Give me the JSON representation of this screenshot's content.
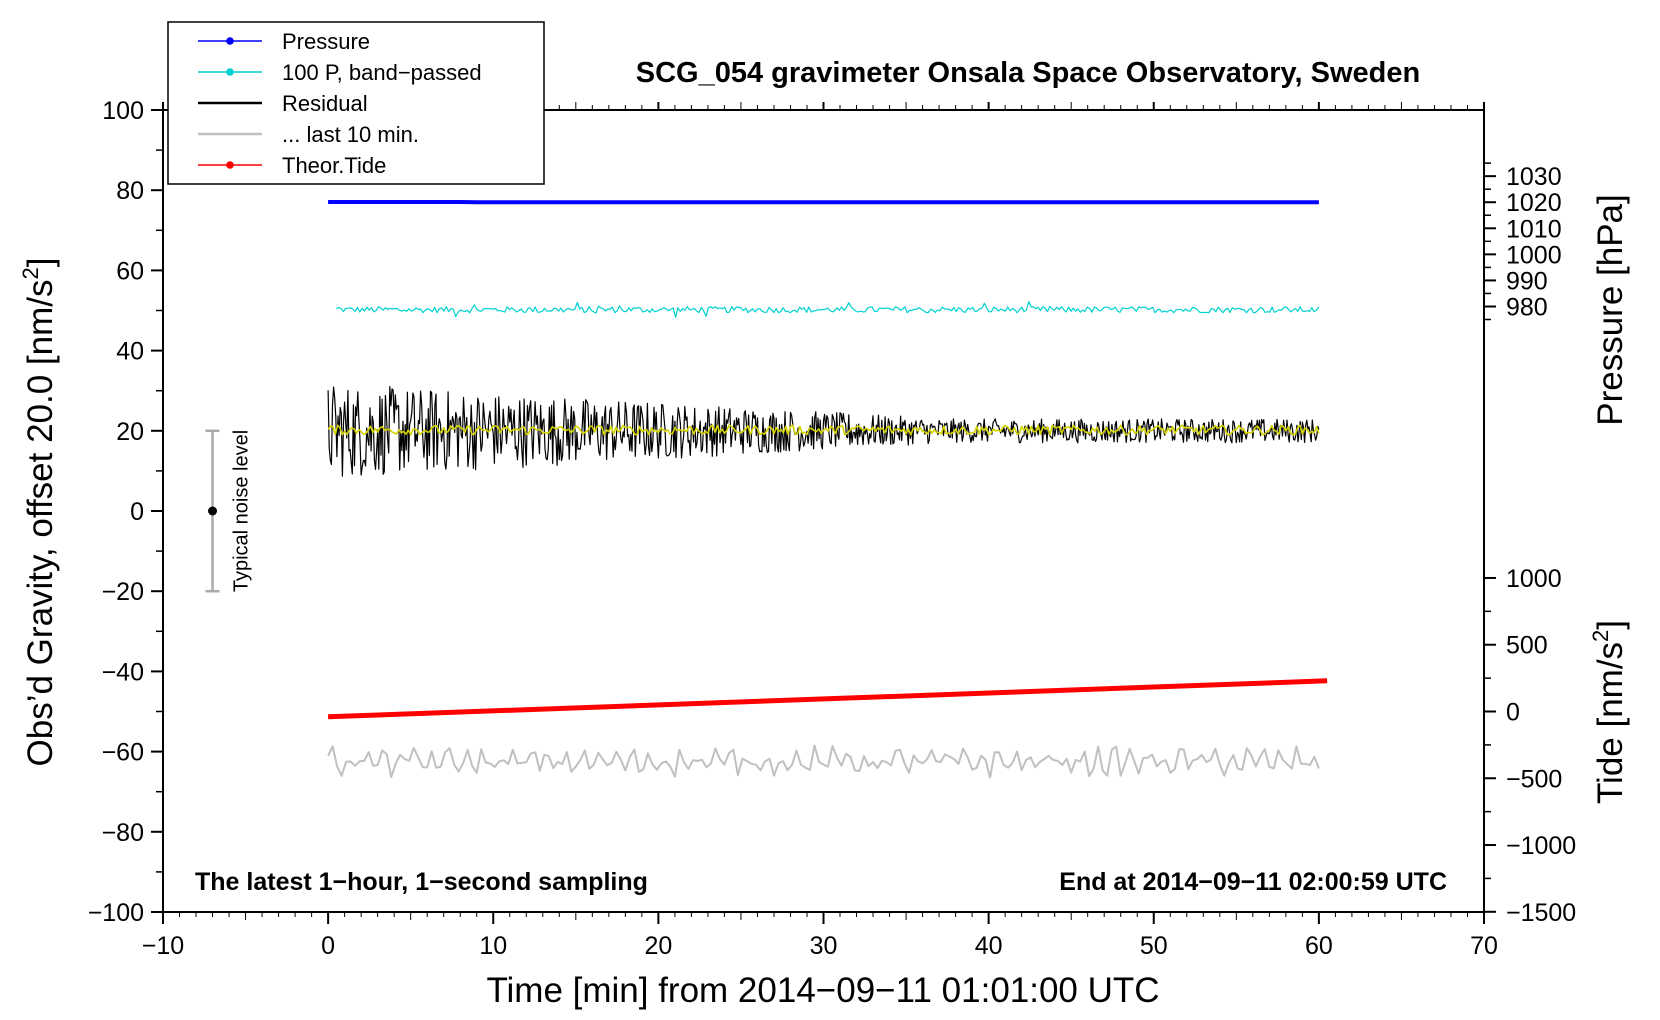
{
  "chart_data": {
    "type": "line",
    "title": "SCG_054 gravimeter Onsala Space Observatory, Sweden",
    "xlabel": "Time [min] from 2014−09−11 01:01:00 UTC",
    "ylabel_left": "Obs’d Gravity, offset 20.0 [nm/s",
    "ylabel_left_sup": "2",
    "ylabel_left_end": "]",
    "ylabel_right_pressure": "Pressure [hPa]",
    "ylabel_right_tide": "Tide [nm/s",
    "ylabel_right_tide_sup": "2",
    "ylabel_right_tide_end": "]",
    "xlim": [
      -10,
      70
    ],
    "ylim_left": [
      -100,
      100
    ],
    "x_ticks": [
      -10,
      0,
      10,
      20,
      30,
      40,
      50,
      60,
      70
    ],
    "x_tick_labels": [
      "−10",
      "0",
      "10",
      "20",
      "30",
      "40",
      "50",
      "60",
      "70"
    ],
    "y_ticks_left": [
      100,
      80,
      60,
      40,
      20,
      0,
      -20,
      -40,
      -60,
      -80,
      -100
    ],
    "y_tick_labels_left": [
      "100",
      "80",
      "60",
      "40",
      "20",
      "0",
      "−20",
      "−40",
      "−60",
      "−80",
      "−100"
    ],
    "pressure_axis": {
      "ticks": [
        1030,
        1020,
        1010,
        1000,
        990,
        980
      ],
      "labels": [
        "1030",
        "1020",
        "1010",
        "1000",
        "990",
        "980"
      ],
      "left_equiv": {
        "from_value": 1020,
        "to_left": 77.0,
        "scale": 0.65
      }
    },
    "tide_axis": {
      "ticks": [
        1000,
        500,
        0,
        -500,
        -1000,
        -1500
      ],
      "labels": [
        "1000",
        "500",
        "0",
        "−500",
        "−1000",
        "−1500"
      ],
      "left_equiv": {
        "from_value": 0,
        "to_left": -50.0,
        "scale": 0.0333
      }
    },
    "annotations": {
      "bottom_left": "The latest 1−hour, 1−second sampling",
      "bottom_right": "End at 2014−09−11 02:00:59 UTC",
      "noise_label": "Typical noise level",
      "noise_bar": {
        "x": -7,
        "center": 0,
        "half_range": 20
      }
    },
    "legend": [
      {
        "label": "Pressure",
        "color": "#0000ff",
        "marker": true
      },
      {
        "label": "100 P, band−passed",
        "color": "#00d0d0",
        "marker": true
      },
      {
        "label": "Residual",
        "color": "#000000",
        "marker": false
      },
      {
        "label": "... last 10 min.",
        "color": "#c0c0c0",
        "marker": false
      },
      {
        "label": "Theor.Tide",
        "color": "#ff0000",
        "marker": true
      }
    ],
    "series": [
      {
        "name": "Pressure",
        "color": "#0000ff",
        "axis": "pressure",
        "x": [
          0,
          8,
          9,
          60
        ],
        "values": [
          1020.1,
          1020.1,
          1020.0,
          1020.0
        ]
      },
      {
        "name": "100 P, band−passed",
        "color": "#00d0d0",
        "axis": "left",
        "x_start": 0.5,
        "x_end": 60,
        "mean": 50.2,
        "amplitude": 1.3
      },
      {
        "name": "Residual",
        "color": "#000000",
        "axis": "left",
        "x_start": 0,
        "x_end": 60,
        "mean": 20,
        "amplitude_start": 12,
        "amplitude_end": 3
      },
      {
        "name": "Smoothed residual",
        "color": "#d4d400",
        "axis": "left",
        "x_start": 0,
        "x_end": 60,
        "mean": 20.2,
        "amplitude": 1.2
      },
      {
        "name": "... last 10 min.",
        "color": "#c0c0c0",
        "axis": "left",
        "x_start": 0,
        "x_end": 60,
        "mean": -62.5,
        "amplitude": 3.5
      },
      {
        "name": "Theor.Tide",
        "color": "#ff0000",
        "axis": "tide",
        "x": [
          0,
          60.5
        ],
        "values": [
          -40,
          230
        ]
      }
    ]
  }
}
